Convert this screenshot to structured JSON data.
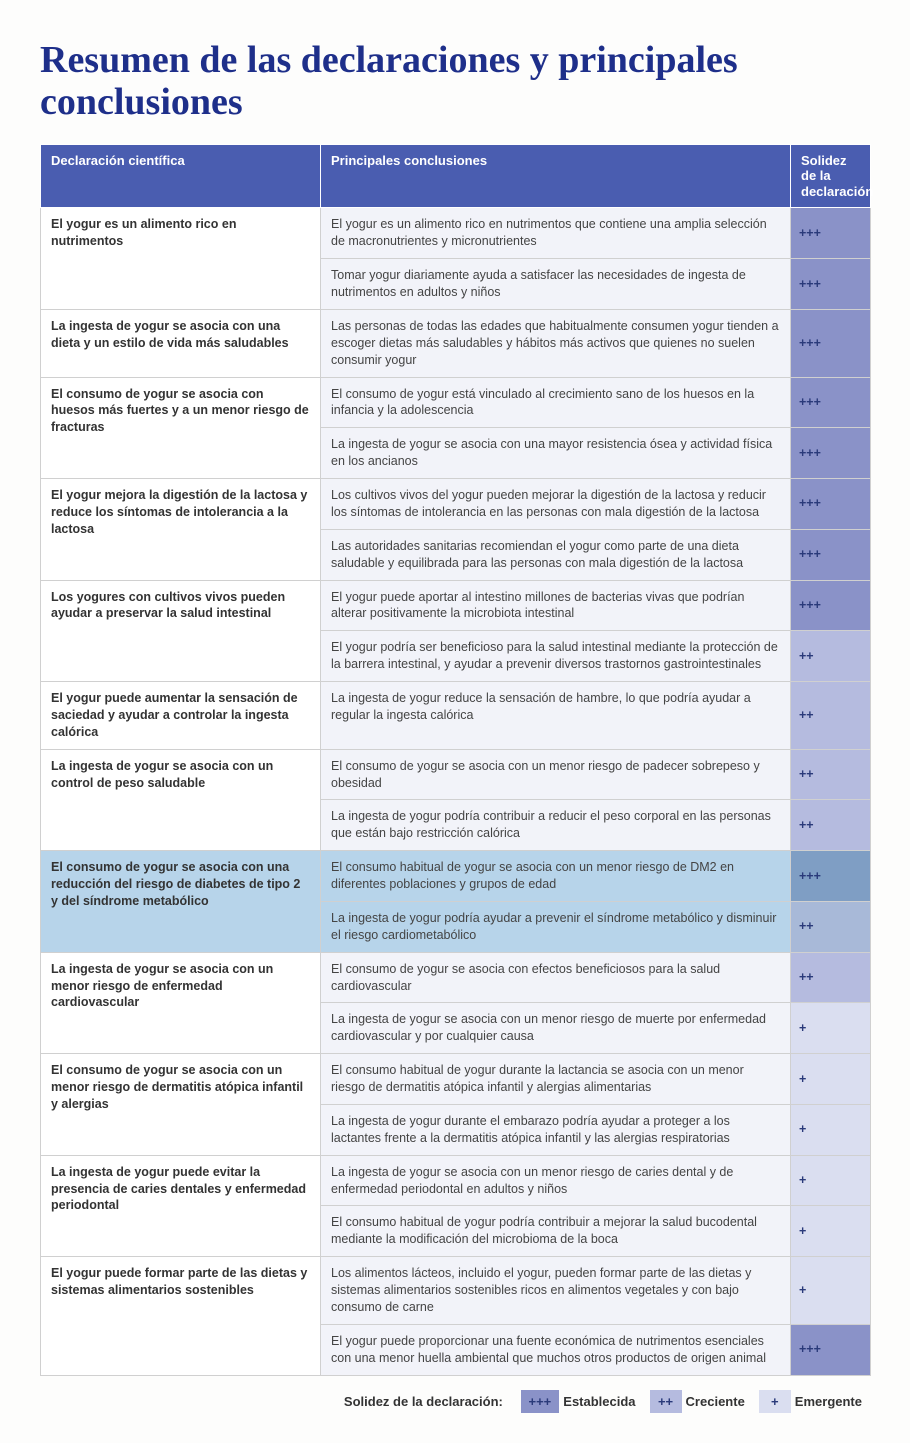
{
  "title": "Resumen de las declaraciones y principales conclusiones",
  "headers": {
    "declaration": "Declaración científica",
    "conclusions": "Principales conclusiones",
    "strength": "Solidez de la declaración"
  },
  "colors": {
    "header_bg": "#4a5db0",
    "title_color": "#1e2f8a",
    "strength_3": "#8a92c8",
    "strength_2": "#b5bbdf",
    "strength_1": "#dadef0",
    "highlight": "#b7d4ea"
  },
  "legend": {
    "label": "Solidez de la declaración:",
    "items": [
      {
        "symbol": "+++",
        "text": "Establecida",
        "level": 3
      },
      {
        "symbol": "++",
        "text": "Creciente",
        "level": 2
      },
      {
        "symbol": "+",
        "text": "Emergente",
        "level": 1
      }
    ]
  },
  "rows": [
    {
      "declaration": "El yogur es un alimento rico en nutrimentos",
      "conclusions": [
        {
          "text": "El yogur es un alimento rico en nutrimentos que contiene una amplia selección de macronutrientes y micronutrientes",
          "strength": "+++",
          "level": 3
        },
        {
          "text": "Tomar yogur diariamente ayuda a satisfacer las necesidades de ingesta de nutrimentos en adultos y niños",
          "strength": "+++",
          "level": 3
        }
      ]
    },
    {
      "declaration": "La ingesta de yogur se asocia con una dieta y un estilo de vida más saludables",
      "conclusions": [
        {
          "text": "Las personas de todas las edades que habitualmente consumen yogur tienden a escoger dietas más saludables y hábitos más activos que quienes no suelen consumir yogur",
          "strength": "+++",
          "level": 3
        }
      ]
    },
    {
      "declaration": "El consumo de yogur se asocia con huesos más fuertes y a un menor riesgo de fracturas",
      "conclusions": [
        {
          "text": "El consumo de yogur está vinculado al crecimiento sano de los huesos en la infancia y la adolescencia",
          "strength": "+++",
          "level": 3
        },
        {
          "text": "La ingesta de yogur se asocia con una mayor resistencia ósea y actividad física en los ancianos",
          "strength": "+++",
          "level": 3
        }
      ]
    },
    {
      "declaration": "El yogur mejora la digestión de la lactosa y reduce los síntomas de intolerancia a la lactosa",
      "conclusions": [
        {
          "text": "Los cultivos vivos del yogur pueden mejorar la digestión de la lactosa y reducir los síntomas de intolerancia en las personas con mala digestión de la lactosa",
          "strength": "+++",
          "level": 3
        },
        {
          "text": "Las autoridades sanitarias recomiendan el yogur como parte de una dieta saludable y equilibrada para las personas con mala digestión de la lactosa",
          "strength": "+++",
          "level": 3
        }
      ]
    },
    {
      "declaration": "Los yogures con cultivos vivos pueden ayudar a preservar la salud intestinal",
      "conclusions": [
        {
          "text": "El yogur puede aportar al intestino millones de bacterias vivas que podrían alterar positivamente la microbiota intestinal",
          "strength": "+++",
          "level": 3
        },
        {
          "text": "El yogur podría ser beneficioso para la salud intestinal mediante la protección de la barrera intestinal, y ayudar a prevenir diversos trastornos gastrointestinales",
          "strength": "++",
          "level": 2
        }
      ]
    },
    {
      "declaration": "El yogur puede aumentar la sensación de saciedad y ayudar a controlar la ingesta calórica",
      "conclusions": [
        {
          "text": "La ingesta de yogur reduce la sensación de hambre, lo que podría ayudar a regular la ingesta calórica",
          "strength": "++",
          "level": 2
        }
      ]
    },
    {
      "declaration": "La ingesta de yogur se asocia con un control de peso saludable",
      "conclusions": [
        {
          "text": "El consumo de yogur se asocia con un menor riesgo de padecer sobrepeso y obesidad",
          "strength": "++",
          "level": 2
        },
        {
          "text": "La ingesta de yogur podría contribuir a reducir el peso corporal en las personas que están bajo restricción calórica",
          "strength": "++",
          "level": 2
        }
      ]
    },
    {
      "declaration": "El consumo de yogur se asocia con una reducción del riesgo de diabetes de tipo 2 y del síndrome metabólico",
      "highlighted": true,
      "conclusions": [
        {
          "text": "El consumo habitual de yogur se asocia con un menor riesgo de DM2 en diferentes poblaciones y grupos de edad",
          "strength": "+++",
          "level": 3,
          "highlighted": true
        },
        {
          "text": "La ingesta de yogur podría ayudar a prevenir el síndrome metabólico y disminuir el riesgo cardiometabólico",
          "strength": "++",
          "level": 2,
          "highlighted": true
        }
      ]
    },
    {
      "declaration": "La ingesta de yogur se asocia con un menor riesgo de enfermedad cardiovascular",
      "conclusions": [
        {
          "text": "El consumo de yogur se asocia con efectos beneficiosos para la salud cardiovascular",
          "strength": "++",
          "level": 2
        },
        {
          "text": "La ingesta de yogur se asocia con un menor riesgo de muerte por enfermedad cardiovascular y por cualquier causa",
          "strength": "+",
          "level": 1
        }
      ]
    },
    {
      "declaration": "El consumo de yogur se asocia con un menor riesgo de dermatitis atópica infantil y alergias",
      "conclusions": [
        {
          "text": "El consumo habitual de yogur durante la lactancia se asocia con un menor riesgo de dermatitis atópica infantil y alergias alimentarias",
          "strength": "+",
          "level": 1
        },
        {
          "text": "La ingesta de yogur durante el embarazo podría ayudar a proteger a los lactantes frente a la dermatitis atópica infantil y las alergias respiratorias",
          "strength": "+",
          "level": 1
        }
      ]
    },
    {
      "declaration": "La ingesta de yogur puede evitar la presencia de caries dentales y enfermedad periodontal",
      "conclusions": [
        {
          "text": "La ingesta de yogur se asocia con un menor riesgo de caries dental y de enfermedad periodontal en adultos y niños",
          "strength": "+",
          "level": 1
        },
        {
          "text": "El consumo habitual de yogur podría contribuir a mejorar la salud bucodental mediante la modificación del microbioma de la boca",
          "strength": "+",
          "level": 1
        }
      ]
    },
    {
      "declaration": "El yogur puede formar parte de las dietas y sistemas alimentarios sostenibles",
      "conclusions": [
        {
          "text": "Los alimentos lácteos, incluido el yogur, pueden formar parte de las dietas y sistemas alimentarios sostenibles ricos en alimentos vegetales y con bajo consumo de carne",
          "strength": "+",
          "level": 1
        },
        {
          "text": "El yogur puede proporcionar una fuente económica de nutrimentos esenciales con una menor huella ambiental que muchos otros productos de origen animal",
          "strength": "+++",
          "level": 3
        }
      ]
    }
  ]
}
